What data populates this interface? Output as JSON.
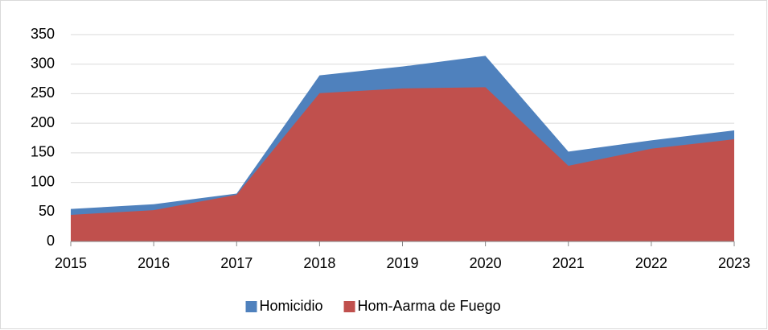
{
  "chart_data": {
    "type": "area",
    "categories": [
      "2015",
      "2016",
      "2017",
      "2018",
      "2019",
      "2020",
      "2021",
      "2022",
      "2023"
    ],
    "series": [
      {
        "name": "Homicidio",
        "color": "#4f81bd",
        "values": [
          55,
          63,
          81,
          281,
          296,
          314,
          152,
          171,
          188
        ]
      },
      {
        "name": "Hom-Aarma de Fuego",
        "color": "#c0504d",
        "values": [
          45,
          53,
          79,
          251,
          259,
          261,
          128,
          157,
          173
        ]
      }
    ],
    "ylim": [
      0,
      350
    ],
    "yticks": [
      0,
      50,
      100,
      150,
      200,
      250,
      300,
      350
    ],
    "grid": true,
    "legend": "bottom"
  }
}
